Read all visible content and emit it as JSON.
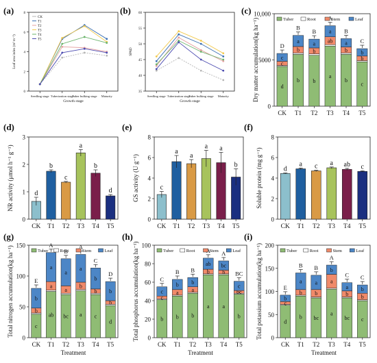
{
  "colors": {
    "tuber": "#8fbc74",
    "root": "#ffffff",
    "stem": "#f08a6a",
    "leaf": "#4c86c6",
    "bars": [
      "#8cbfcc",
      "#1f5fa0",
      "#d99a45",
      "#a7c35c",
      "#7a1f4a",
      "#1a2f80"
    ],
    "lines": [
      "#b5b5b5",
      "#3a6fb3",
      "#e4a1a1",
      "#f2c94c",
      "#6ab36a",
      "#4b4bb0"
    ]
  },
  "chart_data": [
    {
      "panel_label": "(a)",
      "type": "line",
      "ylabel": "Leaf area index (m² m⁻²)",
      "xlabel": "Growth stage",
      "categories": [
        "Seedling stage",
        "Tuberization stage",
        "Tuber bulking stage",
        "Maturity"
      ],
      "ylim": [
        0,
        8
      ],
      "yticks": [
        0,
        2,
        4,
        6,
        8
      ],
      "legend": [
        "CK",
        "T1",
        "T2",
        "T3",
        "T4",
        "T5"
      ],
      "series": [
        {
          "name": "CK",
          "values": [
            0.7,
            3.4,
            3.9,
            3.6
          ]
        },
        {
          "name": "T1",
          "values": [
            0.7,
            5.3,
            6.7,
            5.3
          ]
        },
        {
          "name": "T2",
          "values": [
            0.7,
            4.5,
            4.4,
            4.0
          ]
        },
        {
          "name": "T3",
          "values": [
            0.7,
            5.4,
            6.6,
            5.0
          ]
        },
        {
          "name": "T4",
          "values": [
            0.7,
            4.8,
            5.5,
            4.9
          ]
        },
        {
          "name": "T5",
          "values": [
            0.7,
            3.9,
            4.3,
            3.9
          ]
        }
      ]
    },
    {
      "panel_label": "(b)",
      "type": "line",
      "ylabel": "SPAD",
      "xlabel": "Growth stage",
      "categories": [
        "Seedling stage",
        "Tuberization stage",
        "Tuber bulking stage",
        "Maturity"
      ],
      "ylim": [
        35,
        60
      ],
      "yticks": [
        35,
        40,
        45,
        50,
        55,
        60
      ],
      "series": [
        {
          "name": "CK",
          "values": [
            41.5,
            45.5,
            41.5,
            38.5
          ]
        },
        {
          "name": "T1",
          "values": [
            44.5,
            53.0,
            50.0,
            46.0
          ]
        },
        {
          "name": "T2",
          "values": [
            43.0,
            52.0,
            48.0,
            44.5
          ]
        },
        {
          "name": "T3",
          "values": [
            46.0,
            54.0,
            51.0,
            47.0
          ]
        },
        {
          "name": "T4",
          "values": [
            43.5,
            51.0,
            47.5,
            45.0
          ]
        },
        {
          "name": "T5",
          "values": [
            42.0,
            50.5,
            45.0,
            41.5
          ]
        }
      ]
    },
    {
      "panel_label": "(c)",
      "type": "bar",
      "stacked": true,
      "ylabel": "Dry matter accumulation(kg ha⁻¹)",
      "categories": [
        "CK",
        "T1",
        "T2",
        "T3",
        "T4",
        "T5"
      ],
      "ylim": [
        0,
        10000
      ],
      "yticks": [
        0,
        5000,
        10000
      ],
      "ytick_labels": [
        "0",
        "5000",
        "10,000"
      ],
      "legend": [
        "Tuber",
        "Root",
        "Stem",
        "Leaf"
      ],
      "series": [
        {
          "name": "Tuber",
          "values": [
            4300,
            5600,
            5500,
            6500,
            5600,
            4800
          ],
          "labels": [
            "d",
            "b",
            "b",
            "a",
            "b",
            "c"
          ]
        },
        {
          "name": "Root",
          "values": [
            100,
            150,
            150,
            150,
            150,
            120
          ],
          "labels": [
            "",
            "",
            "",
            "",
            "",
            ""
          ]
        },
        {
          "name": "Stem",
          "values": [
            450,
            700,
            650,
            850,
            650,
            500
          ],
          "labels": [
            "c",
            "b",
            "b",
            "ab",
            "b",
            "b"
          ]
        },
        {
          "name": "Leaf",
          "values": [
            850,
            1200,
            950,
            1200,
            900,
            800
          ],
          "labels": [
            "c",
            "a",
            "a",
            "a",
            "a",
            "b"
          ]
        }
      ],
      "total_labels": [
        "D",
        "B",
        "B",
        "A",
        "B",
        "C"
      ]
    },
    {
      "panel_label": "(d)",
      "type": "bar",
      "ylabel": "NR activity (μmol h⁻¹ g⁻¹)",
      "categories": [
        "CK",
        "T1",
        "T2",
        "T3",
        "T4",
        "T5"
      ],
      "values": [
        0.65,
        1.75,
        1.35,
        2.42,
        1.68,
        0.85
      ],
      "errors": [
        0.15,
        0.05,
        0.03,
        0.12,
        0.12,
        0.05
      ],
      "sig_labels": [
        "d",
        "b",
        "c",
        "a",
        "b",
        "d"
      ],
      "ylim": [
        0,
        3
      ],
      "yticks": [
        0,
        1,
        2,
        3
      ]
    },
    {
      "panel_label": "(e)",
      "type": "bar",
      "ylabel": "GS activity (U g⁻¹)",
      "categories": [
        "CK",
        "T1",
        "T2",
        "T3",
        "T4",
        "T5"
      ],
      "values": [
        2.4,
        5.6,
        5.4,
        5.9,
        5.5,
        4.1
      ],
      "errors": [
        0.3,
        0.6,
        0.4,
        0.8,
        1.0,
        0.8
      ],
      "sig_labels": [
        "c",
        "a",
        "a",
        "a",
        "a",
        "b"
      ],
      "ylim": [
        0,
        8
      ],
      "yticks": [
        0,
        2,
        4,
        6,
        8
      ]
    },
    {
      "panel_label": "(f)",
      "type": "bar",
      "ylabel": "Soluble protein (mg g⁻¹)",
      "categories": [
        "CK",
        "T1",
        "T2",
        "T3",
        "T4",
        "T5"
      ],
      "values": [
        4.45,
        4.9,
        4.7,
        5.0,
        4.85,
        4.65
      ],
      "errors": [
        0.05,
        0.08,
        0.06,
        0.08,
        0.1,
        0.06
      ],
      "sig_labels": [
        "d",
        "a",
        "c",
        "a",
        "ab",
        "c"
      ],
      "ylim": [
        0,
        8
      ],
      "yticks": [
        0,
        2,
        4,
        6,
        8
      ]
    },
    {
      "panel_label": "(g)",
      "type": "bar",
      "stacked": true,
      "ylabel": "Total nitrogen accumulation(kg ha⁻¹)",
      "xlabel": "Treatment",
      "categories": [
        "CK",
        "T1",
        "T2",
        "T3",
        "T4",
        "T5"
      ],
      "ylim": [
        0,
        150
      ],
      "yticks": [
        0,
        50,
        100,
        150
      ],
      "legend": [
        "Tuber",
        "Root",
        "Stem",
        "Leaf"
      ],
      "series": [
        {
          "name": "Tuber",
          "values": [
            38,
            75,
            70,
            76,
            70,
            52
          ],
          "labels": [
            "c",
            "ab",
            "bc",
            "a",
            "c",
            "d"
          ]
        },
        {
          "name": "Root",
          "values": [
            2,
            2,
            2,
            2,
            2,
            2
          ],
          "labels": [
            "",
            "",
            "",
            "",
            "",
            ""
          ]
        },
        {
          "name": "Stem",
          "values": [
            8,
            14,
            12,
            12,
            7,
            6
          ],
          "labels": [
            "b",
            "a",
            "a",
            "b",
            "b",
            "b"
          ]
        },
        {
          "name": "Leaf",
          "values": [
            32,
            47,
            44,
            45,
            34,
            31
          ],
          "labels": [
            "b",
            "a",
            "a",
            "a",
            "b",
            "b"
          ]
        }
      ],
      "total_labels": [
        "E",
        "A",
        "B",
        "A",
        "C",
        "D"
      ]
    },
    {
      "panel_label": "(h)",
      "type": "bar",
      "stacked": true,
      "ylabel": "Total phosphorus accumulation(kg ha⁻¹)",
      "xlabel": "Treatment",
      "categories": [
        "CK",
        "T1",
        "T2",
        "T3",
        "T4",
        "T5"
      ],
      "ylim": [
        0,
        100
      ],
      "yticks": [
        0,
        20,
        40,
        60,
        80,
        100
      ],
      "legend": [
        "Tuber",
        "Root",
        "Stem",
        "Leaf"
      ],
      "series": [
        {
          "name": "Tuber",
          "values": [
            41,
            45,
            48,
            68,
            68,
            47
          ],
          "labels": [
            "b",
            "b",
            "b",
            "a",
            "a",
            "b"
          ]
        },
        {
          "name": "Root",
          "values": [
            1,
            1,
            1,
            1,
            1,
            1
          ],
          "labels": [
            "",
            "",
            "",
            "",
            "",
            ""
          ]
        },
        {
          "name": "Stem",
          "values": [
            3,
            6,
            6,
            5,
            4,
            3
          ],
          "labels": [
            "c",
            "a",
            "a",
            "b",
            "b",
            "bc"
          ]
        },
        {
          "name": "Leaf",
          "values": [
            10,
            11,
            10,
            12,
            10,
            10
          ],
          "labels": [
            "c",
            "b",
            "b",
            "ab",
            "bc",
            "c"
          ]
        }
      ],
      "total_labels": [
        "C",
        "B",
        "B",
        "A",
        "A",
        "BC"
      ]
    },
    {
      "panel_label": "(i)",
      "type": "bar",
      "stacked": true,
      "ylabel": "Total potassium accumulation(kg ha⁻¹)",
      "xlabel": "Treatment",
      "categories": [
        "CK",
        "T1",
        "T2",
        "T3",
        "T4",
        "T5"
      ],
      "ylim": [
        0,
        200
      ],
      "yticks": [
        0,
        50,
        100,
        150,
        200
      ],
      "legend": [
        "Tuber",
        "Root",
        "Stem",
        "Leaf"
      ],
      "series": [
        {
          "name": "Tuber",
          "values": [
            70,
            90,
            86,
            105,
            86,
            80
          ],
          "labels": [
            "d",
            "b",
            "bc",
            "a",
            "bc",
            "c"
          ]
        },
        {
          "name": "Root",
          "values": [
            2,
            2,
            2,
            2,
            2,
            2
          ],
          "labels": [
            "",
            "",
            "",
            "",
            "",
            ""
          ]
        },
        {
          "name": "Stem",
          "values": [
            6,
            12,
            16,
            30,
            13,
            14
          ],
          "labels": [
            "c",
            "b",
            "b",
            "a",
            "b",
            "b"
          ]
        },
        {
          "name": "Leaf",
          "values": [
            14,
            36,
            31,
            20,
            18,
            18
          ],
          "labels": [
            "b",
            "a",
            "a",
            "b",
            "a",
            "b"
          ]
        }
      ],
      "total_labels": [
        "E",
        "B",
        "B",
        "A",
        "C",
        "C"
      ]
    }
  ]
}
